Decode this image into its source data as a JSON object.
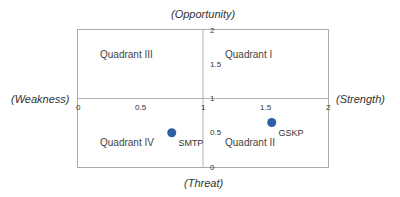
{
  "chart_data": {
    "type": "scatter",
    "x": [
      0.75,
      1.55
    ],
    "values": [
      0.5,
      0.65
    ],
    "point_labels": [
      "SMTP",
      "GSKP"
    ],
    "color": "#2E5FA3",
    "xlim": [
      0,
      2
    ],
    "ylim": [
      0,
      2
    ],
    "xticks": [
      0,
      0.5,
      1,
      1.5,
      2
    ],
    "yticks": [
      0,
      0.5,
      1,
      1.5,
      2
    ],
    "center": {
      "x": 1.0,
      "y": 1.0
    },
    "quadrant_labels": {
      "top_left": "Quadrant III",
      "top_right": "Quadrant I",
      "bottom_left": "Quadrant IV",
      "bottom_right": "Quadrant II"
    },
    "axis_labels": {
      "top": "(Opportunity)",
      "bottom": "(Threat)",
      "left": "(Weakness)",
      "right": "(Strength)"
    },
    "grid": false
  }
}
